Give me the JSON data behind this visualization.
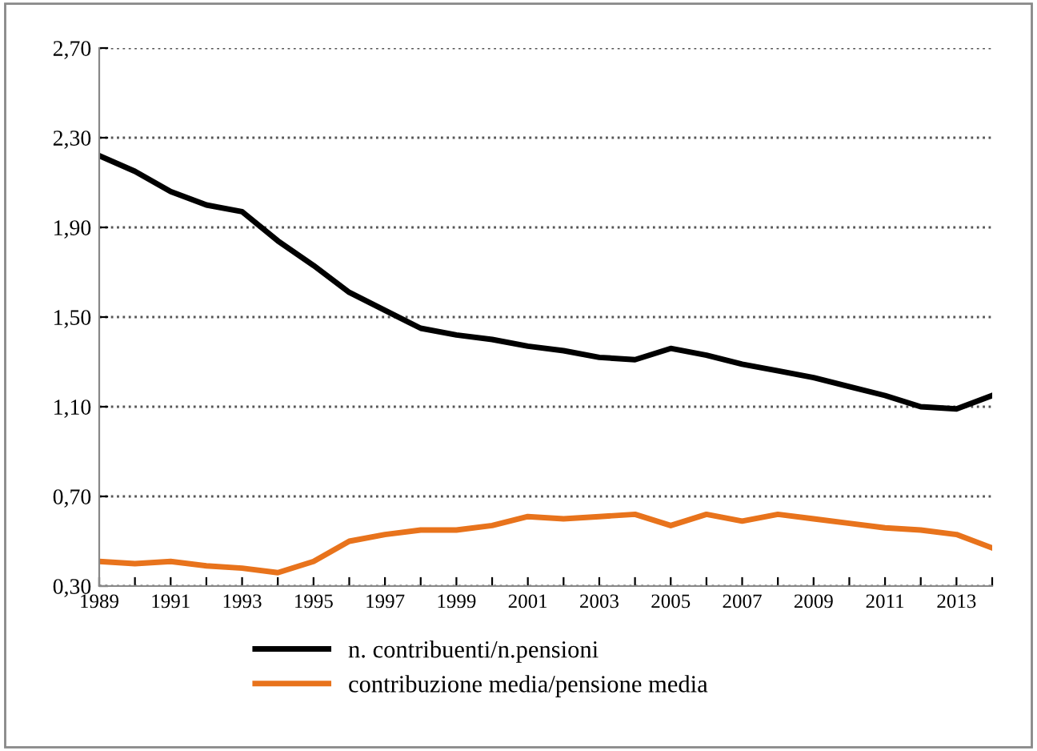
{
  "chart_data": {
    "type": "line",
    "categories": [
      "1989",
      null,
      "1991",
      null,
      "1993",
      null,
      "1995",
      null,
      "1997",
      null,
      "1999",
      null,
      "2001",
      null,
      "2003",
      null,
      "2005",
      null,
      "2007",
      null,
      "2009",
      null,
      "2011",
      null,
      "2013",
      null
    ],
    "series": [
      {
        "name": "n. contribuenti/n.pensioni",
        "color": "#000000",
        "values": [
          2.22,
          2.15,
          2.06,
          2.0,
          1.97,
          1.84,
          1.73,
          1.61,
          1.53,
          1.45,
          1.42,
          1.4,
          1.37,
          1.35,
          1.32,
          1.31,
          1.36,
          1.33,
          1.29,
          1.26,
          1.23,
          1.19,
          1.15,
          1.1,
          1.09,
          1.15
        ]
      },
      {
        "name": "contribuzione media/pensione media",
        "color": "#e8731c",
        "values": [
          0.41,
          0.4,
          0.41,
          0.39,
          0.38,
          0.36,
          0.41,
          0.5,
          0.53,
          0.55,
          0.55,
          0.57,
          0.61,
          0.6,
          0.61,
          0.62,
          0.57,
          0.62,
          0.59,
          0.62,
          0.6,
          0.58,
          0.56,
          0.55,
          0.53,
          0.47
        ]
      }
    ],
    "ylim": [
      0.3,
      2.7
    ],
    "yticks": [
      {
        "value": 0.3,
        "label": "0,30"
      },
      {
        "value": 0.7,
        "label": "0,70"
      },
      {
        "value": 1.1,
        "label": "1,10"
      },
      {
        "value": 1.5,
        "label": "1,50"
      },
      {
        "value": 1.9,
        "label": "1,90"
      },
      {
        "value": 2.3,
        "label": "2,30"
      },
      {
        "value": 2.7,
        "label": "2,70"
      }
    ],
    "grid": "y",
    "legend": "bottom",
    "marker": "none",
    "line_style": "solid"
  }
}
